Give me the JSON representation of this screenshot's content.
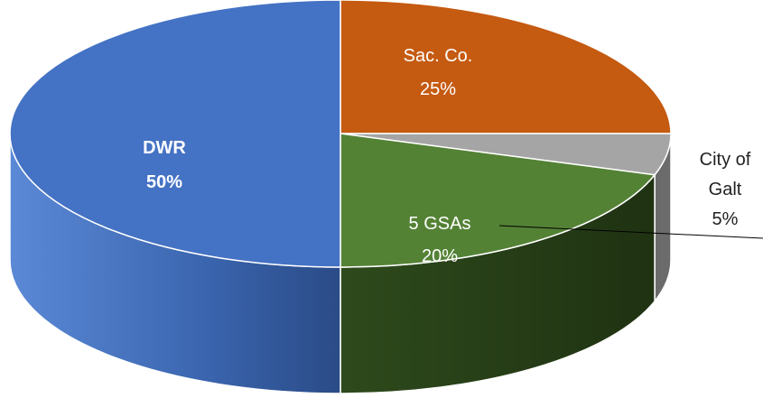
{
  "chart_data": {
    "type": "pie",
    "title": "",
    "slices": [
      {
        "name": "Sac. Co.",
        "value": 25,
        "label_line1": "Sac. Co.",
        "label_line2": "25%",
        "color": "#C55A11",
        "side_color": "#803A0B",
        "label_color": "#ffffff",
        "bold": false
      },
      {
        "name": "City of Galt",
        "value": 5,
        "label_line1": "City of",
        "label_line2": "Galt",
        "label_line3": "5%",
        "color": "#A5A5A5",
        "side_color": "#6B6B6B",
        "label_color": "#222222",
        "bold": false
      },
      {
        "name": "5 GSAs",
        "value": 20,
        "label_line1": "5 GSAs",
        "label_line2": "20%",
        "color": "#548235",
        "side_color": "#263B18",
        "label_color": "#ffffff",
        "bold": false
      },
      {
        "name": "DWR",
        "value": 50,
        "label_line1": "DWR",
        "label_line2": "50%",
        "color": "#4472C4",
        "side_color": "#2F5597",
        "label_color": "#ffffff",
        "bold": true
      }
    ]
  }
}
